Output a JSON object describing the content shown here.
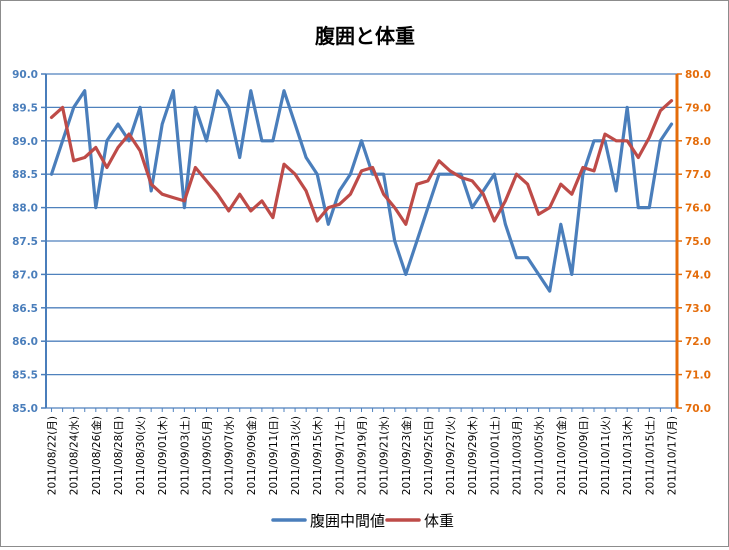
{
  "chart_data": {
    "type": "line",
    "title": "腹囲と体重",
    "x": [
      "2011/08/22(月)",
      "2011/08/23(火)",
      "2011/08/24(水)",
      "2011/08/25(木)",
      "2011/08/26(金)",
      "2011/08/27(土)",
      "2011/08/28(日)",
      "2011/08/29(月)",
      "2011/08/30(火)",
      "2011/08/31(水)",
      "2011/09/01(木)",
      "2011/09/02(金)",
      "2011/09/03(土)",
      "2011/09/04(日)",
      "2011/09/05(月)",
      "2011/09/06(火)",
      "2011/09/07(水)",
      "2011/09/08(木)",
      "2011/09/09(金)",
      "2011/09/10(土)",
      "2011/09/11(日)",
      "2011/09/12(月)",
      "2011/09/13(火)",
      "2011/09/14(水)",
      "2011/09/15(木)",
      "2011/09/16(金)",
      "2011/09/17(土)",
      "2011/09/18(日)",
      "2011/09/19(月)",
      "2011/09/20(火)",
      "2011/09/21(水)",
      "2011/09/22(木)",
      "2011/09/23(金)",
      "2011/09/24(土)",
      "2011/09/25(日)",
      "2011/09/26(月)",
      "2011/09/27(火)",
      "2011/09/28(水)",
      "2011/09/29(木)",
      "2011/09/30(金)",
      "2011/10/01(土)",
      "2011/10/02(日)",
      "2011/10/03(月)",
      "2011/10/04(火)",
      "2011/10/05(水)",
      "2011/10/06(木)",
      "2011/10/07(金)",
      "2011/10/08(土)",
      "2011/10/09(日)",
      "2011/10/10(月)",
      "2011/10/11(火)",
      "2011/10/12(水)",
      "2011/10/13(木)",
      "2011/10/14(金)",
      "2011/10/15(土)",
      "2011/10/16(日)",
      "2011/10/17(月)"
    ],
    "x_tick_labels": [
      "2011/08/22(月)",
      "2011/08/24(水)",
      "2011/08/26(金)",
      "2011/08/28(日)",
      "2011/08/30(火)",
      "2011/09/01(木)",
      "2011/09/03(土)",
      "2011/09/05(月)",
      "2011/09/07(水)",
      "2011/09/09(金)",
      "2011/09/11(日)",
      "2011/09/13(火)",
      "2011/09/15(木)",
      "2011/09/17(土)",
      "2011/09/19(月)",
      "2011/09/21(水)",
      "2011/09/23(金)",
      "2011/09/25(日)",
      "2011/09/27(火)",
      "2011/09/29(木)",
      "2011/10/01(土)",
      "2011/10/03(月)",
      "2011/10/05(水)",
      "2011/10/07(金)",
      "2011/10/09(日)",
      "2011/10/11(火)",
      "2011/10/13(木)",
      "2011/10/15(土)",
      "2011/10/17(月)"
    ],
    "series": [
      {
        "name": "腹囲中間値",
        "axis": "left",
        "color": "#4a7ebb",
        "values": [
          88.5,
          89.0,
          89.5,
          89.75,
          88.0,
          89.0,
          89.25,
          89.0,
          89.5,
          88.25,
          89.25,
          89.75,
          88.0,
          89.5,
          89.0,
          89.75,
          89.5,
          88.75,
          89.75,
          89.0,
          89.0,
          89.75,
          89.25,
          88.75,
          88.5,
          87.75,
          88.25,
          88.5,
          89.0,
          88.5,
          88.5,
          87.5,
          87.0,
          87.5,
          88.0,
          88.5,
          88.5,
          88.5,
          88.0,
          88.25,
          88.5,
          87.75,
          87.25,
          87.25,
          87.0,
          86.75,
          87.75,
          87.0,
          88.5,
          89.0,
          89.0,
          88.25,
          89.5,
          88.0,
          88.0,
          89.0,
          89.25
        ]
      },
      {
        "name": "体重",
        "axis": "right",
        "color": "#be4b48",
        "values": [
          78.7,
          79.0,
          77.4,
          77.5,
          77.8,
          77.2,
          77.8,
          78.2,
          77.7,
          76.7,
          76.4,
          76.3,
          76.2,
          77.2,
          76.8,
          76.4,
          75.9,
          76.4,
          75.9,
          76.2,
          75.7,
          77.3,
          77.0,
          76.5,
          75.6,
          76.0,
          76.1,
          76.4,
          77.1,
          77.2,
          76.4,
          76.0,
          75.5,
          76.7,
          76.8,
          77.4,
          77.1,
          76.9,
          76.8,
          76.4,
          75.6,
          76.2,
          77.0,
          76.7,
          75.8,
          76.0,
          76.7,
          76.4,
          77.2,
          77.1,
          78.2,
          78.0,
          78.0,
          77.5,
          78.1,
          78.9,
          79.2
        ]
      }
    ],
    "y_left": {
      "min": 85.0,
      "max": 90.0,
      "step": 0.5,
      "color": "#4a7ebb"
    },
    "y_right": {
      "min": 70.0,
      "max": 80.0,
      "step": 1.0,
      "color": "#e46c0a"
    },
    "grid": true,
    "legend_position": "bottom"
  }
}
